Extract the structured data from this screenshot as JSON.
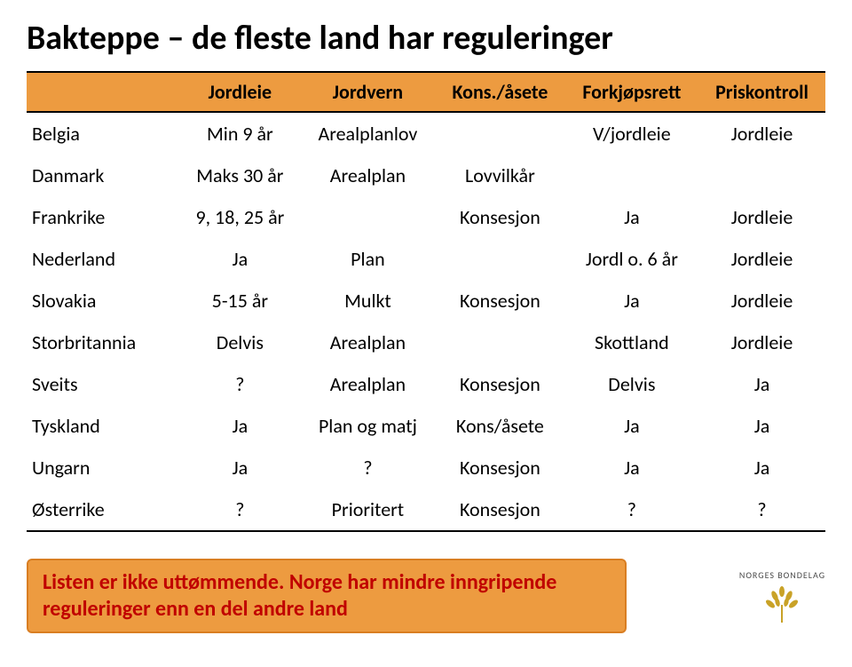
{
  "title": "Bakteppe – de fleste land har reguleringer",
  "table": {
    "headers": [
      "",
      "Jordleie",
      "Jordvern",
      "Kons./åsete",
      "Forkjøpsrett",
      "Priskontroll"
    ],
    "row_header_col_width": 160,
    "header_bg": "#ed9b40",
    "header_border_color": "#000000",
    "rows": [
      [
        "Belgia",
        "Min 9 år",
        "Arealplanlov",
        "",
        "V/jordleie",
        "Jordleie"
      ],
      [
        "Danmark",
        "Maks 30 år",
        "Arealplan",
        "Lovvilkår",
        "",
        ""
      ],
      [
        "Frankrike",
        "9, 18, 25 år",
        "",
        "Konsesjon",
        "Ja",
        "Jordleie"
      ],
      [
        "Nederland",
        "Ja",
        "Plan",
        "",
        "Jordl o. 6 år",
        "Jordleie"
      ],
      [
        "Slovakia",
        "5-15 år",
        "Mulkt",
        "Konsesjon",
        "Ja",
        "Jordleie"
      ],
      [
        "Storbritannia",
        "Delvis",
        "Arealplan",
        "",
        "Skottland",
        "Jordleie"
      ],
      [
        "Sveits",
        "?",
        "Arealplan",
        "Konsesjon",
        "Delvis",
        "Ja"
      ],
      [
        "Tyskland",
        "Ja",
        "Plan og matj",
        "Kons/åsete",
        "Ja",
        "Ja"
      ],
      [
        "Ungarn",
        "Ja",
        "?",
        "Konsesjon",
        "Ja",
        "Ja"
      ],
      [
        "Østerrike",
        "?",
        "Prioritert",
        "Konsesjon",
        "?",
        "?"
      ]
    ]
  },
  "note": "Listen er ikke uttømmende. Norge har mindre inngripende reguleringer enn en del andre land",
  "note_bg": "#ed9b40",
  "note_border": "#d97e22",
  "note_text_color": "#c00000",
  "logo_text": "NORGES BONDELAG",
  "logo_color": "#c9a227"
}
